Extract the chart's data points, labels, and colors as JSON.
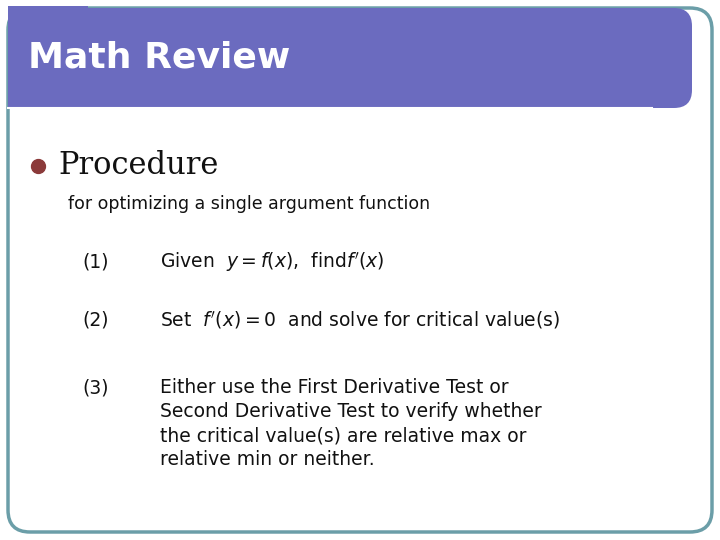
{
  "title": "Math Review",
  "title_bg_color": "#6B6BBF",
  "title_text_color": "#ffffff",
  "body_bg_color": "#ffffff",
  "border_color": "#6B9EA8",
  "bullet_color": "#8B3A3A",
  "bullet_label": "Procedure",
  "sub_label": "for optimizing a single argument function",
  "step1_num": "(1)",
  "step1_text": "Given  $y = f(x)$,  find$f'(x)$",
  "step2_num": "(2)",
  "step2_text": "Set  $f'(x) = 0$  and solve for critical value(s)",
  "step3_num": "(3)",
  "step3_line1": "Either use the First Derivative Test or",
  "step3_line2": "Second Derivative Test to verify whether",
  "step3_line3": "the critical value(s) are relative max or",
  "step3_line4": "relative min or neither.",
  "fig_width": 7.2,
  "fig_height": 5.4,
  "dpi": 100
}
